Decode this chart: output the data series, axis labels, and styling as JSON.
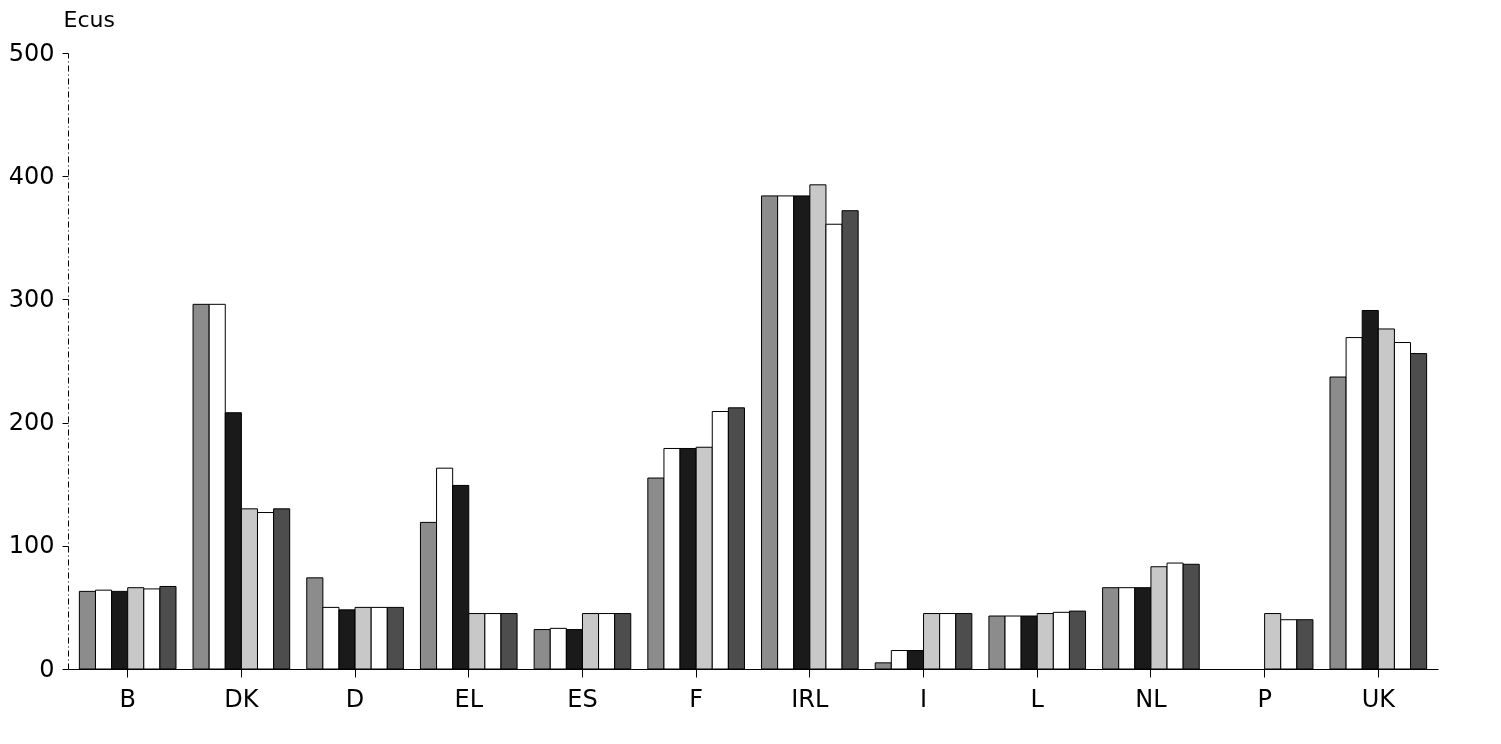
{
  "chart_data": {
    "type": "bar",
    "ylabel": "Ecus",
    "categories": [
      "B",
      "DK",
      "D",
      "EL",
      "ES",
      "F",
      "IRL",
      "I",
      "L",
      "NL",
      "P",
      "UK"
    ],
    "ylim": [
      0,
      500
    ],
    "yticks": [
      0,
      100,
      200,
      300,
      400,
      500
    ],
    "grid": false,
    "legend": false,
    "series": [
      {
        "color": "#8c8c8c",
        "values": [
          63,
          296,
          74,
          119,
          32,
          155,
          384,
          5,
          43,
          66,
          null,
          237
        ]
      },
      {
        "color": "#ffffff",
        "values": [
          64,
          296,
          50,
          163,
          33,
          179,
          384,
          15,
          43,
          66,
          null,
          269
        ]
      },
      {
        "color": "#1a1a1a",
        "values": [
          63,
          208,
          48,
          149,
          32,
          179,
          384,
          15,
          43,
          66,
          null,
          291
        ]
      },
      {
        "color": "#c8c8c8",
        "values": [
          66,
          130,
          50,
          45,
          45,
          180,
          393,
          45,
          45,
          83,
          45,
          276
        ]
      },
      {
        "color": "#ffffff",
        "values": [
          65,
          127,
          50,
          45,
          45,
          209,
          361,
          45,
          46,
          86,
          40,
          265
        ]
      },
      {
        "color": "#4d4d4d",
        "values": [
          67,
          130,
          50,
          45,
          45,
          212,
          372,
          45,
          47,
          85,
          40,
          256
        ]
      }
    ]
  }
}
